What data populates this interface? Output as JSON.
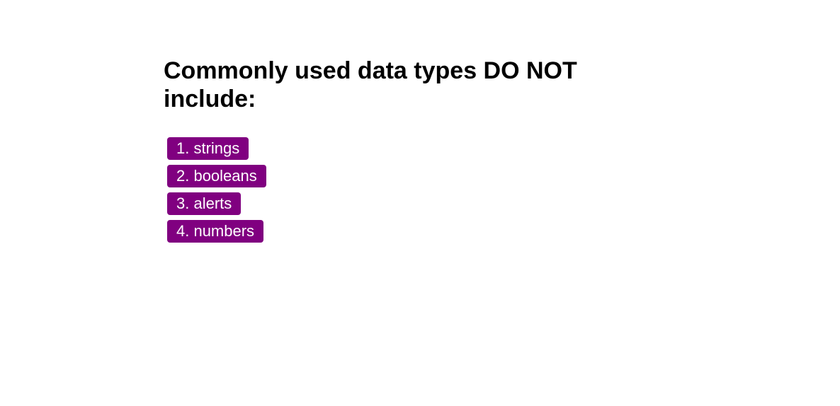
{
  "question": {
    "title": "Commonly used data types DO NOT include:"
  },
  "choices": [
    {
      "label": "1. strings"
    },
    {
      "label": "2. booleans"
    },
    {
      "label": "3. alerts"
    },
    {
      "label": "4. numbers"
    }
  ],
  "colors": {
    "button_background": "#800080",
    "button_text": "#ffffff",
    "page_background": "#ffffff",
    "title_text": "#000000"
  }
}
